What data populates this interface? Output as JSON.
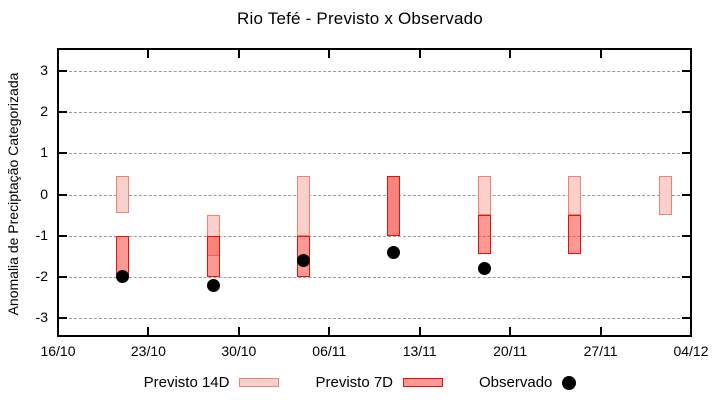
{
  "title": "Rio Tefé - Previsto x Observado",
  "axes": {
    "y_label": "Anomalia de Preciptação Categorizada",
    "y_ticks": [
      3,
      2,
      1,
      0,
      -1,
      -2,
      -3
    ],
    "x_ticks": [
      {
        "label": "16/10",
        "day": 0
      },
      {
        "label": "23/10",
        "day": 7
      },
      {
        "label": "30/10",
        "day": 14
      },
      {
        "label": "06/11",
        "day": 21
      },
      {
        "label": "13/11",
        "day": 28
      },
      {
        "label": "20/11",
        "day": 35
      },
      {
        "label": "27/11",
        "day": 42
      },
      {
        "label": "04/12",
        "day": 49
      }
    ]
  },
  "legend": {
    "items": [
      {
        "label": "Previsto 14D",
        "swatch": "pink"
      },
      {
        "label": "Previsto 7D",
        "swatch": "red"
      },
      {
        "label": "Observado",
        "swatch": "dot"
      }
    ]
  },
  "colors": {
    "previsto14_fill": "#fbd0ca",
    "previsto14_border": "#f08273",
    "previsto7_fill": "#fc9994",
    "previsto7_border": "#e91008",
    "overlap_fill": "#fa847d",
    "observado": "#000000",
    "grid": "#9a9a9a"
  },
  "chart_data": {
    "type": "bar",
    "title": "Rio Tefé - Previsto x Observado",
    "ylabel": "Anomalia de Preciptação Categorizada",
    "ylim": [
      -3.5,
      3.5
    ],
    "x_range": [
      "16/10",
      "04/12"
    ],
    "x_unit": "days from 16/10, weekly points",
    "grid": true,
    "legend_position": "bottom",
    "series": [
      {
        "name": "Previsto 14D",
        "type": "range_bar",
        "points": [
          {
            "date": "21/10",
            "day": 5,
            "high": 0.45,
            "low": -0.45
          },
          {
            "date": "28/10",
            "day": 12,
            "high": -0.5,
            "low": -1.5
          },
          {
            "date": "04/11",
            "day": 19,
            "high": 0.45,
            "low": -1.0
          },
          {
            "date": "11/11",
            "day": 26,
            "high": 0.45,
            "low": -1.0
          },
          {
            "date": "18/11",
            "day": 33,
            "high": 0.45,
            "low": -0.5
          },
          {
            "date": "25/11",
            "day": 40,
            "high": 0.45,
            "low": -0.5
          },
          {
            "date": "02/12",
            "day": 47,
            "high": 0.45,
            "low": -0.5
          }
        ]
      },
      {
        "name": "Previsto 7D",
        "type": "range_bar",
        "points": [
          {
            "date": "21/10",
            "day": 5,
            "high": -1.0,
            "low": -2.0
          },
          {
            "date": "28/10",
            "day": 12,
            "high": -1.0,
            "low": -2.0
          },
          {
            "date": "04/11",
            "day": 19,
            "high": -1.0,
            "low": -2.0
          },
          {
            "date": "11/11",
            "day": 26,
            "high": 0.45,
            "low": -1.0
          },
          {
            "date": "18/11",
            "day": 33,
            "high": -0.5,
            "low": -1.45
          },
          {
            "date": "25/11",
            "day": 40,
            "high": -0.5,
            "low": -1.45
          }
        ]
      },
      {
        "name": "Observado",
        "type": "scatter",
        "points": [
          {
            "date": "21/10",
            "day": 5,
            "value": -2.0
          },
          {
            "date": "28/10",
            "day": 12,
            "value": -2.2
          },
          {
            "date": "04/11",
            "day": 19,
            "value": -1.6
          },
          {
            "date": "11/11",
            "day": 26,
            "value": -1.4
          },
          {
            "date": "18/11",
            "day": 33,
            "value": -1.8
          }
        ]
      }
    ]
  }
}
